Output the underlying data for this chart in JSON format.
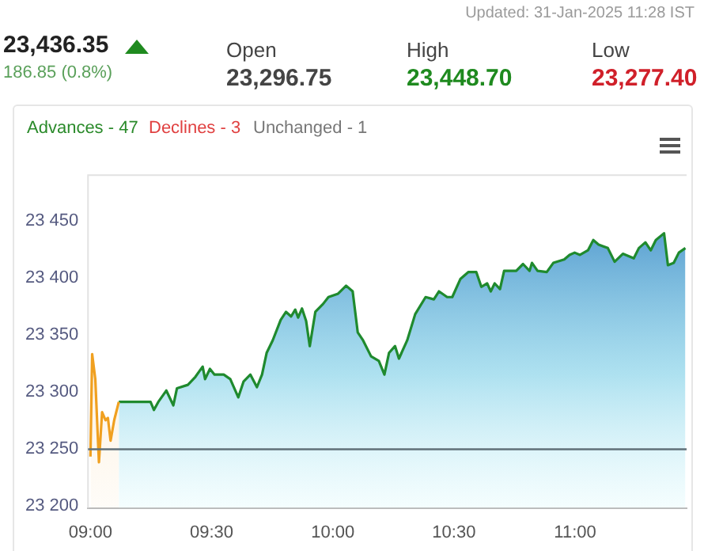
{
  "chart_data": {
    "type": "area",
    "annotations": [
      "Updated: 31-Jan-2025 11:28 IST",
      "23,436.35",
      "186.85 (0.8%)",
      "Open",
      "23,296.75",
      "High",
      "23,448.70",
      "Low",
      "23,277.40",
      "Advances - 47",
      "Declines - 3",
      "Unchanged - 1"
    ],
    "series": [
      {
        "type": "area",
        "color": "#f0a020",
        "x": [
          9.0,
          9.007,
          9.02,
          9.035,
          9.048,
          9.062,
          9.072,
          9.083,
          9.098,
          9.117
        ],
        "values": [
          23243,
          23333,
          23311,
          23238,
          23282,
          23275,
          23277,
          23257,
          23275,
          23291
        ]
      },
      {
        "type": "area",
        "color": "#1f8a2e",
        "x": [
          9.117,
          9.248,
          9.262,
          9.28,
          9.313,
          9.342,
          9.357,
          9.402,
          9.433,
          9.463,
          9.473,
          9.493,
          9.512,
          9.55,
          9.577,
          9.61,
          9.632,
          9.66,
          9.687,
          9.708,
          9.727,
          9.752,
          9.785,
          9.807,
          9.828,
          9.845,
          9.857,
          9.873,
          9.89,
          9.905,
          9.928,
          9.96,
          9.982,
          10.022,
          10.055,
          10.082,
          10.103,
          10.125,
          10.158,
          10.19,
          10.213,
          10.232,
          10.257,
          10.273,
          10.307,
          10.34,
          10.383,
          10.417,
          10.438,
          10.472,
          10.493,
          10.527,
          10.56,
          10.592,
          10.613,
          10.637,
          10.652,
          10.668,
          10.69,
          10.707,
          10.757,
          10.785,
          10.812,
          10.822,
          10.845,
          10.883,
          10.91,
          10.955,
          10.977,
          10.998,
          11.02,
          11.053,
          11.075,
          11.097,
          11.135,
          11.163,
          11.197,
          11.242,
          11.263,
          11.29,
          11.312,
          11.333,
          11.367,
          11.383,
          11.407,
          11.428,
          11.455
        ],
        "values": [
          23291,
          23291,
          23284,
          23291,
          23301,
          23288,
          23303,
          23306,
          23313,
          23322,
          23311,
          23320,
          23315,
          23315,
          23311,
          23295,
          23309,
          23315,
          23304,
          23315,
          23334,
          23345,
          23363,
          23370,
          23366,
          23372,
          23365,
          23373,
          23362,
          23340,
          23370,
          23377,
          23383,
          23386,
          23393,
          23388,
          23352,
          23345,
          23331,
          23327,
          23315,
          23334,
          23340,
          23329,
          23345,
          23368,
          23383,
          23381,
          23388,
          23383,
          23383,
          23399,
          23405,
          23405,
          23392,
          23395,
          23388,
          23395,
          23390,
          23406,
          23406,
          23412,
          23406,
          23413,
          23406,
          23405,
          23413,
          23416,
          23420,
          23422,
          23420,
          23424,
          23433,
          23429,
          23426,
          23414,
          23421,
          23417,
          23426,
          23431,
          23424,
          23433,
          23439,
          23411,
          23413,
          23422,
          23426
        ]
      }
    ],
    "xlim": [
      8.99,
      11.46
    ],
    "xticks": [
      {
        "value": 9,
        "label": "09:00"
      },
      {
        "value": 9.5,
        "label": "09:30"
      },
      {
        "value": 10,
        "label": "10:00"
      },
      {
        "value": 10.5,
        "label": "10:30"
      },
      {
        "value": 11,
        "label": "11:00"
      }
    ],
    "ylim": [
      23198,
      23490
    ],
    "yticks": [
      {
        "value": 23200,
        "label": "23 200"
      },
      {
        "value": 23250,
        "label": "23 250"
      },
      {
        "value": 23300,
        "label": "23 300"
      },
      {
        "value": 23350,
        "label": "23 350"
      },
      {
        "value": 23400,
        "label": "23 400"
      },
      {
        "value": 23450,
        "label": "23 450"
      }
    ],
    "ref_lines": [
      {
        "axis": "y",
        "value": 23249.5,
        "color": "#607078"
      }
    ],
    "legend": false,
    "grid": false,
    "marker": "none"
  }
}
